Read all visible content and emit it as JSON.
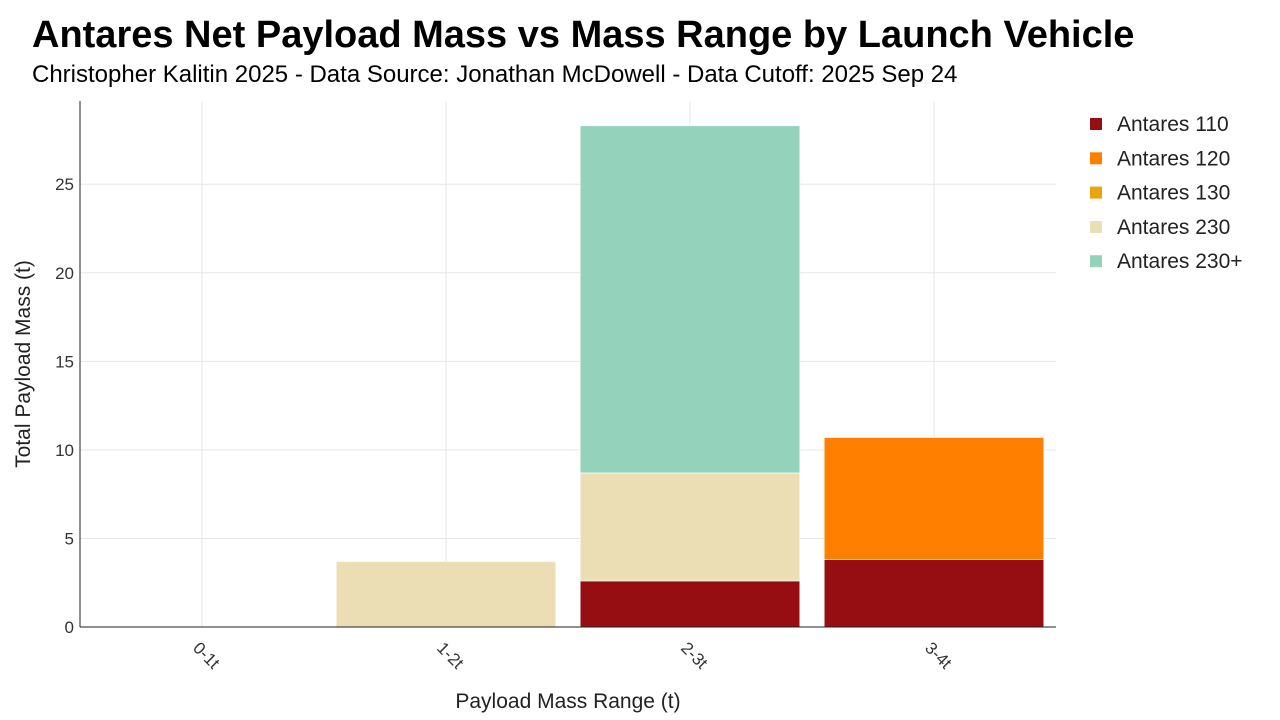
{
  "chart_data": {
    "type": "bar",
    "stacked": true,
    "title": "Antares Net Payload Mass vs Mass Range by Launch Vehicle",
    "subtitle": "Christopher Kalitin 2025 - Data Source: Jonathan McDowell - Data Cutoff: 2025 Sep 24",
    "xlabel": "Payload Mass Range (t)",
    "ylabel": "Total Payload Mass (t)",
    "categories": [
      "0-1t",
      "1-2t",
      "2-3t",
      "3-4t"
    ],
    "ylim": [
      0,
      29.7
    ],
    "yticks": [
      0,
      5,
      10,
      15,
      20,
      25
    ],
    "grid": true,
    "legend_position": "right",
    "series": [
      {
        "name": "Antares 110",
        "color": "#960d12",
        "values": [
          0,
          0,
          2.6,
          3.8
        ]
      },
      {
        "name": "Antares 120",
        "color": "#ff8000",
        "values": [
          0,
          0,
          0,
          6.9
        ]
      },
      {
        "name": "Antares 130",
        "color": "#eaa311",
        "values": [
          0,
          0,
          0,
          0
        ]
      },
      {
        "name": "Antares 230",
        "color": "#ebdeb5",
        "values": [
          0,
          3.7,
          6.1,
          0
        ]
      },
      {
        "name": "Antares 230+",
        "color": "#94d2bb",
        "values": [
          0,
          0,
          19.6,
          0
        ]
      }
    ]
  }
}
